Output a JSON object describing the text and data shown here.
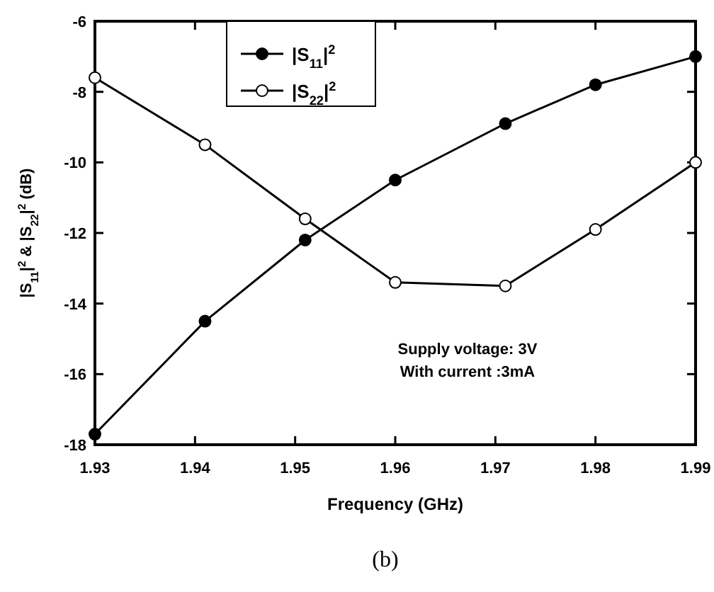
{
  "chart_data": {
    "type": "line",
    "xlabel": "Frequency (GHz)",
    "ylabel": "|S$_{11}$|$^{2}$ & |S$_{22}$|$^{2}$ (dB)",
    "x": [
      1.93,
      1.941,
      1.951,
      1.96,
      1.971,
      1.98,
      1.99
    ],
    "series": [
      {
        "name": "|S$_{11}$|$^{2}$",
        "color": "#000000",
        "marker": "circle",
        "values": [
          -17.7,
          -14.5,
          -12.2,
          -10.5,
          -8.9,
          -7.8,
          -7.0
        ]
      },
      {
        "name": "|S$_{22}$|$^{2}$",
        "color": "#000000",
        "marker": "open_circle",
        "values": [
          -7.6,
          -9.5,
          -11.6,
          -13.4,
          -13.5,
          -11.9,
          -10.0
        ]
      }
    ],
    "xlim": [
      1.93,
      1.99
    ],
    "xticks": [
      1.93,
      1.94,
      1.95,
      1.96,
      1.97,
      1.98,
      1.99
    ],
    "ylim": [
      -18,
      -6
    ],
    "yticks": [
      -18,
      -16,
      -14,
      -12,
      -10,
      -8,
      -6
    ],
    "grid": false,
    "legend": "top",
    "line_style": "solid",
    "annotations": [
      "Supply voltage: 3V",
      "With current :3mA",
      "(b)"
    ]
  }
}
